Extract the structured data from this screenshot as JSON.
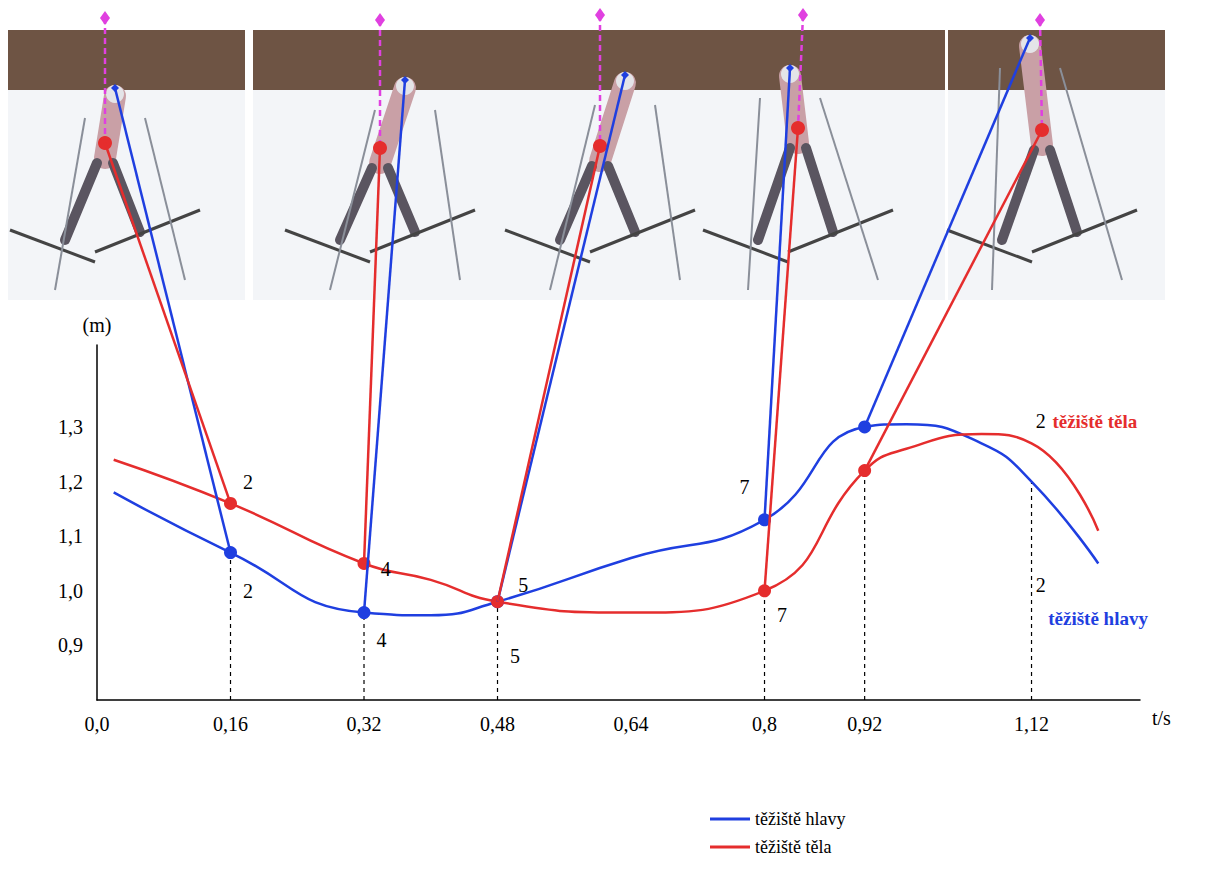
{
  "chart_data": {
    "type": "line",
    "x": [
      0.02,
      0.16,
      0.32,
      0.4,
      0.48,
      0.64,
      0.8,
      0.92,
      0.97,
      1.06,
      1.12,
      1.2
    ],
    "series": [
      {
        "name": "těžiště hlavy",
        "color": "#1f3fe0",
        "values": [
          1.18,
          1.07,
          0.96,
          0.955,
          0.98,
          1.06,
          1.13,
          1.3,
          1.305,
          1.27,
          1.2,
          1.05
        ]
      },
      {
        "name": "těžiště těla",
        "color": "#e52d2d",
        "values": [
          1.24,
          1.16,
          1.05,
          1.02,
          0.98,
          0.96,
          1.0,
          1.22,
          1.26,
          1.287,
          1.27,
          1.11
        ]
      }
    ],
    "xlim": [
      0,
      1.25
    ],
    "xticks": [
      {
        "value": 0,
        "label": "0,0"
      },
      {
        "value": 0.16,
        "label": "0,16"
      },
      {
        "value": 0.32,
        "label": "0,32"
      },
      {
        "value": 0.48,
        "label": "0,48"
      },
      {
        "value": 0.64,
        "label": "0,64"
      },
      {
        "value": 0.8,
        "label": "0,8"
      },
      {
        "value": 0.92,
        "label": "0,92"
      },
      {
        "value": 1.12,
        "label": "1,12"
      }
    ],
    "ylim": [
      0.8,
      1.45
    ],
    "yticks": [
      {
        "value": 0.9,
        "label": "0,9"
      },
      {
        "value": 1.0,
        "label": "1,0"
      },
      {
        "value": 1.1,
        "label": "1,1"
      },
      {
        "value": 1.2,
        "label": "1,2"
      },
      {
        "value": 1.3,
        "label": "1,3"
      }
    ],
    "x_label": "t/s",
    "y_label": "(m)",
    "grid": false,
    "legend": "bottom",
    "marker": "circle",
    "highlighted_x": [
      0.16,
      0.32,
      0.48,
      0.8,
      0.92
    ],
    "dashed_x": [
      0.16,
      0.32,
      0.48,
      0.8,
      0.92,
      1.12
    ],
    "annotations": [
      {
        "text": "2",
        "x": 0.175,
        "y": 1.2
      },
      {
        "text": "2",
        "x": 0.175,
        "y": 1.0
      },
      {
        "text": "4",
        "x": 0.34,
        "y": 1.04
      },
      {
        "text": "4",
        "x": 0.335,
        "y": 0.91
      },
      {
        "text": "5",
        "x": 0.505,
        "y": 1.01
      },
      {
        "text": "5",
        "x": 0.495,
        "y": 0.88
      },
      {
        "text": "7",
        "x": 0.77,
        "y": 1.19
      },
      {
        "text": "7",
        "x": 0.815,
        "y": 0.955
      },
      {
        "text": "2",
        "x": 1.125,
        "y": 1.31
      },
      {
        "text": "2",
        "x": 1.125,
        "y": 1.01
      },
      {
        "text": "těžiště těla",
        "x": 1.145,
        "y": 1.31,
        "color": "#e52d2d"
      },
      {
        "text": "těžiště hlavy",
        "x": 1.14,
        "y": 0.95,
        "color": "#1f3fe0"
      }
    ]
  }
}
